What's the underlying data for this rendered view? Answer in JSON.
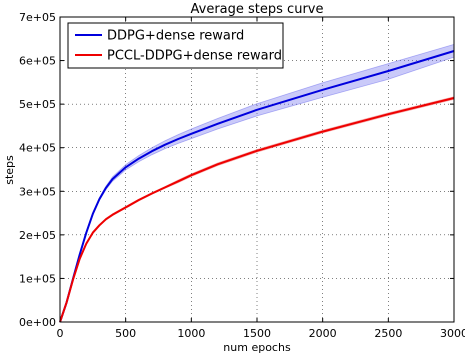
{
  "chart_data": {
    "type": "line",
    "title": "Average steps curve",
    "xlabel": "num epochs",
    "ylabel": "steps",
    "xlim": [
      0,
      3000
    ],
    "ylim": [
      0,
      700000
    ],
    "x_ticks": [
      0,
      500,
      1000,
      1500,
      2000,
      2500,
      3000
    ],
    "y_ticks": [
      0,
      100000,
      200000,
      300000,
      400000,
      500000,
      600000,
      700000
    ],
    "x_tick_labels": [
      "0",
      "500",
      "1000",
      "1500",
      "2000",
      "2500",
      "3000"
    ],
    "y_tick_labels": [
      "0e+00",
      "1e+05",
      "2e+05",
      "3e+05",
      "4e+05",
      "5e+05",
      "6e+05",
      "7e+05"
    ],
    "grid": true,
    "legend_position": "top-left",
    "x": [
      0,
      50,
      100,
      150,
      200,
      250,
      300,
      350,
      400,
      500,
      600,
      700,
      800,
      900,
      1000,
      1200,
      1500,
      2000,
      2500,
      3000
    ],
    "series": [
      {
        "name": "DDPG+dense reward",
        "color": "#0000dd",
        "band_color": "#6666ee",
        "values": [
          0,
          45000,
          100000,
          155000,
          205000,
          248000,
          282000,
          308000,
          328000,
          355000,
          375000,
          392000,
          407000,
          420000,
          432000,
          455000,
          487000,
          533000,
          576000,
          622000
        ],
        "lower": [
          0,
          44000,
          98000,
          153000,
          203000,
          245000,
          279000,
          304000,
          323000,
          349000,
          368000,
          384000,
          398000,
          410000,
          421000,
          443000,
          473000,
          516000,
          557000,
          608000
        ],
        "upper": [
          0,
          46000,
          102000,
          157000,
          207000,
          251000,
          285000,
          312000,
          333000,
          361000,
          382000,
          400000,
          416000,
          430000,
          443000,
          467000,
          501000,
          549000,
          593000,
          637000
        ]
      },
      {
        "name": "PCCL-DDPG+dense reward",
        "color": "#ee0000",
        "band_color": "#ee6666",
        "values": [
          0,
          45000,
          98000,
          145000,
          180000,
          205000,
          222000,
          236000,
          246000,
          263000,
          280000,
          295000,
          309000,
          323000,
          337000,
          362000,
          393000,
          437000,
          477000,
          514000
        ],
        "lower": [
          0,
          44000,
          96000,
          143000,
          178000,
          203000,
          220000,
          234000,
          244000,
          261000,
          278000,
          293000,
          307000,
          320000,
          334000,
          359000,
          390000,
          434000,
          474000,
          511000
        ],
        "upper": [
          0,
          46000,
          100000,
          147000,
          182000,
          207000,
          224000,
          238000,
          248000,
          265000,
          282000,
          297000,
          311000,
          326000,
          340000,
          365000,
          396000,
          440000,
          480000,
          517000
        ]
      }
    ]
  }
}
